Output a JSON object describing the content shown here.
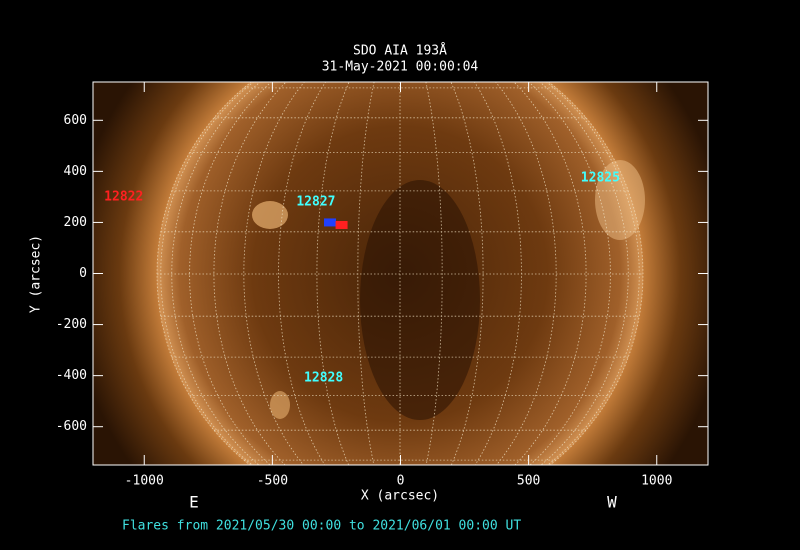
{
  "chart_data": {
    "type": "image",
    "title": "SDO AIA 193Å",
    "subtitle": "31-May-2021 00:00:04",
    "x_label": "X (arcsec)",
    "y_label": "Y (arcsec)",
    "xlim": [
      -1200,
      1200
    ],
    "ylim": [
      -750,
      750
    ],
    "xticks": [
      -1000,
      -500,
      0,
      500,
      1000
    ],
    "yticks": [
      -600,
      -400,
      -200,
      0,
      200,
      400,
      600
    ],
    "regions": [
      {
        "label": "12822",
        "x": -1080,
        "y": 300,
        "color": "#ff2020"
      },
      {
        "label": "12827",
        "x": -330,
        "y": 280,
        "color": "#40ffff"
      },
      {
        "label": "12825",
        "x": 780,
        "y": 375,
        "color": "#40ffff"
      },
      {
        "label": "12828",
        "x": -300,
        "y": -410,
        "color": "#40ffff"
      }
    ],
    "flares": [
      {
        "x": -275,
        "y": 200,
        "color": "#2040ff"
      },
      {
        "x": -230,
        "y": 190,
        "color": "#ff2020"
      }
    ],
    "east_label": "E",
    "west_label": "W",
    "footer": "Flares from 2021/05/30 00:00 to 2021/06/01 00:00 UT"
  }
}
